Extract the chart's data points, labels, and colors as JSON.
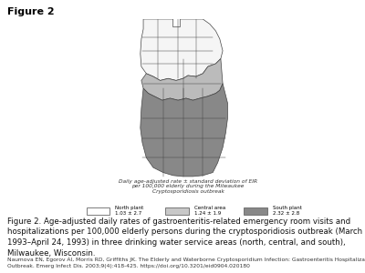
{
  "figure_title": "Figure 2",
  "figure_title_fontsize": 8,
  "map_title_line1": "Daily age-adjusted rate ± standard deviation of EIR",
  "map_title_line2": "per 100,000 elderly during the Milwaukee",
  "map_title_line3": "Cryptosporidiosis outbreak",
  "legend_items": [
    {
      "label": "North plant\n1.03 ± 2.7",
      "color": "#ffffff",
      "edgecolor": "#666666"
    },
    {
      "label": "Central area\n1.24 ± 1.9",
      "color": "#c8c8c8",
      "edgecolor": "#666666"
    },
    {
      "label": "South plant\n2.32 ± 2.8",
      "color": "#888888",
      "edgecolor": "#666666"
    }
  ],
  "caption": "Figure 2. Age-adjusted daily rates of gastroenteritis-related emergency room visits and\nhospitalizations per 100,000 elderly persons during the cryptosporidiosis outbreak (March 28,\n1993–April 24, 1993) in three drinking water service areas (north, central, and south),\nMilwaukee, Wisconsin.",
  "reference": "Naumova EN, Egorov AI, Morris RD, Griffiths JK. The Elderly and Waterborne Cryptosporidium Infection: Gastroenteritis Hospitalizations before and during the 1993 Milwaukee\nOutbreak. Emerg Infect Dis. 2003;9(4):418-425. https://doi.org/10.3201/eid0904.020180",
  "bg_color": "#ffffff",
  "north_color": "#f5f5f5",
  "central_color": "#bbbbbb",
  "south_color": "#888888",
  "border_color": "#444444"
}
